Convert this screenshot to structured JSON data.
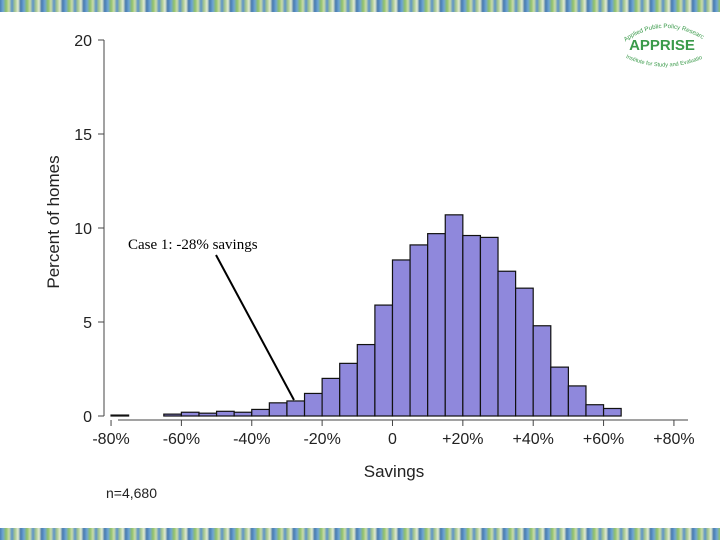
{
  "chart_data": {
    "type": "bar",
    "xlabel": "Savings",
    "ylabel": "Percent of homes",
    "xlim": [
      -82,
      84
    ],
    "ylim": [
      0,
      20
    ],
    "x_ticks": [
      {
        "value": -80,
        "label": "-80%"
      },
      {
        "value": -60,
        "label": "-60%"
      },
      {
        "value": -40,
        "label": "-40%"
      },
      {
        "value": -20,
        "label": "-20%"
      },
      {
        "value": 0,
        "label": "0"
      },
      {
        "value": 20,
        "label": "+20%"
      },
      {
        "value": 40,
        "label": "+40%"
      },
      {
        "value": 60,
        "label": "+60%"
      },
      {
        "value": 80,
        "label": "+80%"
      }
    ],
    "y_ticks": [
      {
        "value": 0,
        "label": "0"
      },
      {
        "value": 5,
        "label": "5"
      },
      {
        "value": 10,
        "label": "10"
      },
      {
        "value": 15,
        "label": "15"
      },
      {
        "value": 20,
        "label": "20"
      }
    ],
    "bin_width": 5,
    "bins": [
      {
        "start": -80,
        "value": 0.05
      },
      {
        "start": -75,
        "value": 0.0
      },
      {
        "start": -70,
        "value": 0.0
      },
      {
        "start": -65,
        "value": 0.1
      },
      {
        "start": -60,
        "value": 0.2
      },
      {
        "start": -55,
        "value": 0.15
      },
      {
        "start": -50,
        "value": 0.25
      },
      {
        "start": -45,
        "value": 0.2
      },
      {
        "start": -40,
        "value": 0.35
      },
      {
        "start": -35,
        "value": 0.7
      },
      {
        "start": -30,
        "value": 0.8
      },
      {
        "start": -25,
        "value": 1.2
      },
      {
        "start": -20,
        "value": 2.0
      },
      {
        "start": -15,
        "value": 2.8
      },
      {
        "start": -10,
        "value": 3.8
      },
      {
        "start": -5,
        "value": 5.9
      },
      {
        "start": 0,
        "value": 8.3
      },
      {
        "start": 5,
        "value": 9.1
      },
      {
        "start": 10,
        "value": 9.7
      },
      {
        "start": 15,
        "value": 10.7
      },
      {
        "start": 20,
        "value": 9.6
      },
      {
        "start": 25,
        "value": 9.5
      },
      {
        "start": 30,
        "value": 7.7
      },
      {
        "start": 35,
        "value": 6.8
      },
      {
        "start": 40,
        "value": 4.8
      },
      {
        "start": 45,
        "value": 2.6
      },
      {
        "start": 50,
        "value": 1.6
      },
      {
        "start": 55,
        "value": 0.6
      },
      {
        "start": 60,
        "value": 0.4
      }
    ],
    "bar_color": "#8f88dc",
    "annotation": {
      "text": "Case 1:  -28% savings",
      "x": -28,
      "y": 0.85
    }
  },
  "footnote": "n=4,680",
  "logo": {
    "name": "APPRISE",
    "tagline_top": "Applied Public Policy Research",
    "tagline_bottom": "Institute for Study and Evaluation",
    "color": "#3a9a4a"
  }
}
